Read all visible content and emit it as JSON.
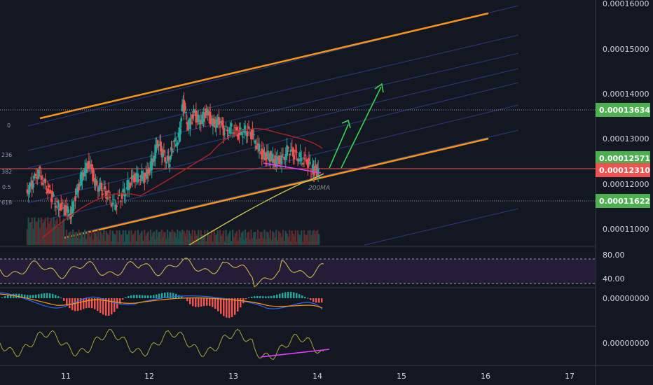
{
  "chart_data": {
    "type": "candlestick",
    "price_axis": {
      "ticks": [
        "0.00016000",
        "0.00015000",
        "0.00014000",
        "0.00013000",
        "0.00012000",
        "0.00011000"
      ],
      "range": [
        0.0001045,
        0.0001612
      ]
    },
    "time_axis": {
      "ticks": [
        "11",
        "12",
        "13",
        "14",
        "15",
        "16",
        "17"
      ]
    },
    "price_badges": [
      {
        "label": "0.00013634",
        "value": 0.00013634,
        "color": "#4caf50"
      },
      {
        "label": "0.00012571",
        "value": 0.00012571,
        "color": "#4caf50"
      },
      {
        "label": "0.00012310",
        "value": 0.0001231,
        "color": "#ef5350"
      },
      {
        "label": "0.00011622",
        "value": 0.00011622,
        "color": "#4caf50"
      }
    ],
    "fib_labels": [
      "0",
      "236",
      "382",
      "0.5",
      "618"
    ],
    "ma_label": "200MA",
    "rsi": {
      "ticks": [
        "80.00",
        "40.00"
      ],
      "upper": 70,
      "lower": 30
    },
    "macd": {
      "tick": "0.00000000"
    },
    "osc": {
      "tick": "0.00000000"
    },
    "price_path": [
      [
        10.55,
        0.000119
      ],
      [
        10.62,
        0.0001205
      ],
      [
        10.7,
        0.0001235
      ],
      [
        10.78,
        0.00012
      ],
      [
        10.85,
        0.0001178
      ],
      [
        10.92,
        0.000116
      ],
      [
        11.0,
        0.000115
      ],
      [
        11.08,
        0.000114
      ],
      [
        11.15,
        0.0001185
      ],
      [
        11.22,
        0.000123
      ],
      [
        11.3,
        0.000125
      ],
      [
        11.38,
        0.0001205
      ],
      [
        11.45,
        0.0001195
      ],
      [
        11.52,
        0.000118
      ],
      [
        11.6,
        0.000116
      ],
      [
        11.68,
        0.0001175
      ],
      [
        11.75,
        0.00012
      ],
      [
        11.82,
        0.0001215
      ],
      [
        11.9,
        0.0001225
      ],
      [
        11.98,
        0.000122
      ],
      [
        12.05,
        0.0001255
      ],
      [
        12.12,
        0.00013
      ],
      [
        12.18,
        0.000127
      ],
      [
        12.25,
        0.0001255
      ],
      [
        12.3,
        0.000129
      ],
      [
        12.37,
        0.000131
      ],
      [
        12.42,
        0.0001385
      ],
      [
        12.48,
        0.0001335
      ],
      [
        12.55,
        0.000136
      ],
      [
        12.62,
        0.0001345
      ],
      [
        12.7,
        0.0001365
      ],
      [
        12.78,
        0.000134
      ],
      [
        12.85,
        0.0001345
      ],
      [
        12.92,
        0.000132
      ],
      [
        13.0,
        0.000133
      ],
      [
        13.08,
        0.0001315
      ],
      [
        13.15,
        0.0001325
      ],
      [
        13.22,
        0.000132
      ],
      [
        13.3,
        0.0001295
      ],
      [
        13.38,
        0.0001265
      ],
      [
        13.45,
        0.000127
      ],
      [
        13.52,
        0.0001255
      ],
      [
        13.6,
        0.000126
      ],
      [
        13.68,
        0.0001285
      ],
      [
        13.75,
        0.000127
      ],
      [
        13.82,
        0.0001265
      ],
      [
        13.9,
        0.0001255
      ],
      [
        13.96,
        0.000124
      ],
      [
        14.0,
        0.0001235
      ],
      [
        14.04,
        0.0001231
      ]
    ]
  }
}
